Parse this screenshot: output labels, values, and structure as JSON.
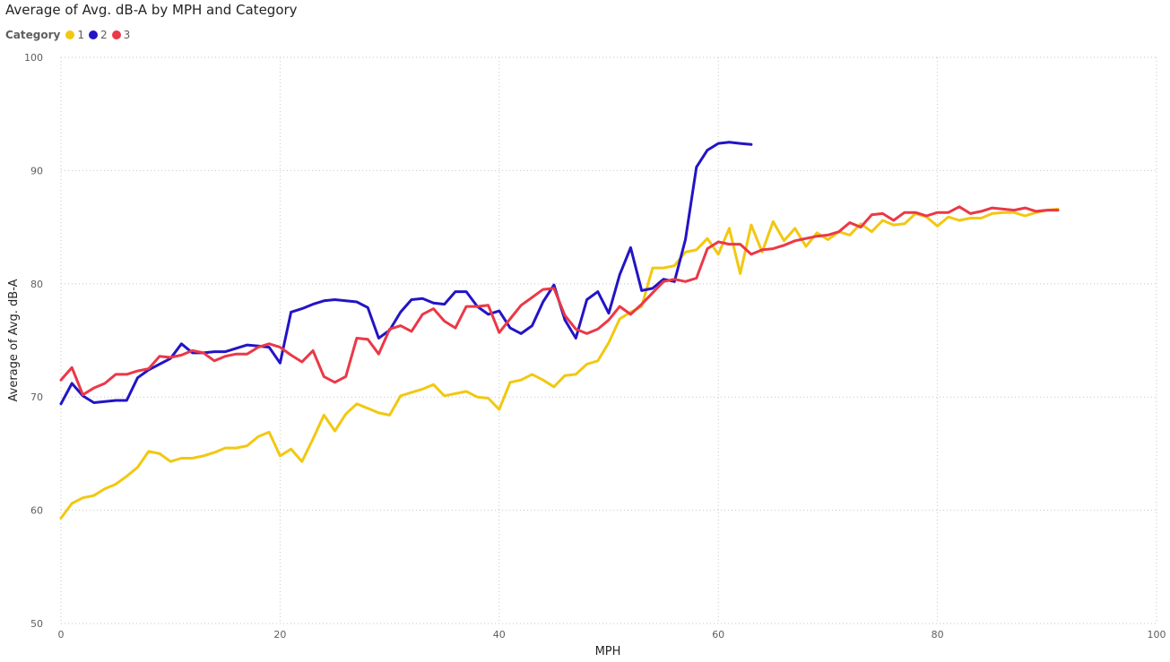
{
  "chart_data": {
    "type": "line",
    "title": "Average of Avg. dB-A by MPH and Category",
    "xlabel": "MPH",
    "ylabel": "Average of Avg. dB-A",
    "xlim": [
      0,
      100
    ],
    "ylim": [
      50,
      100
    ],
    "xticks": [
      "0",
      "20",
      "40",
      "60",
      "80",
      "100"
    ],
    "yticks": [
      "50",
      "60",
      "70",
      "80",
      "90",
      "100"
    ],
    "grid": true,
    "legend": {
      "title": "Category",
      "placement": "top-left"
    },
    "series": [
      {
        "name": "1",
        "color": "#F2C811",
        "x": [
          0,
          1,
          2,
          3,
          4,
          5,
          6,
          7,
          8,
          9,
          10,
          11,
          12,
          13,
          14,
          15,
          16,
          17,
          18,
          19,
          20,
          21,
          22,
          23,
          24,
          25,
          26,
          27,
          28,
          29,
          30,
          31,
          32,
          33,
          34,
          35,
          36,
          37,
          38,
          39,
          40,
          41,
          42,
          43,
          44,
          45,
          46,
          47,
          48,
          49,
          50,
          51,
          52,
          53,
          54,
          55,
          56,
          57,
          58,
          59,
          60,
          61,
          62,
          63,
          64,
          65,
          66,
          67,
          68,
          69,
          70,
          71,
          72,
          73,
          74,
          75,
          76,
          77,
          78,
          79,
          80,
          81,
          82,
          83,
          84,
          85,
          86,
          87,
          88,
          89,
          90,
          91
        ],
        "y": [
          59.3,
          60.6,
          61.1,
          61.3,
          61.9,
          62.3,
          63.0,
          63.8,
          65.2,
          65.0,
          64.3,
          64.6,
          64.6,
          64.8,
          65.1,
          65.5,
          65.5,
          65.7,
          66.5,
          66.9,
          64.8,
          65.4,
          64.3,
          66.3,
          68.4,
          67.0,
          68.5,
          69.4,
          69.0,
          68.6,
          68.4,
          70.1,
          70.4,
          70.7,
          71.1,
          70.1,
          70.3,
          70.5,
          70.0,
          69.9,
          68.9,
          71.3,
          71.5,
          72.0,
          71.5,
          70.9,
          71.9,
          72.0,
          72.9,
          73.2,
          74.8,
          76.9,
          77.5,
          78.0,
          81.4,
          81.4,
          81.6,
          82.8,
          83.0,
          84.0,
          82.6,
          84.9,
          80.9,
          85.2,
          82.8,
          85.5,
          83.8,
          84.9,
          83.3,
          84.5,
          83.9,
          84.6,
          84.3,
          85.3,
          84.6,
          85.6,
          85.2,
          85.3,
          86.2,
          85.9,
          85.1,
          85.9,
          85.6,
          85.8,
          85.8,
          86.2,
          86.3,
          86.3,
          86.0,
          86.3,
          86.5,
          86.6
        ]
      },
      {
        "name": "2",
        "color": "#2314C5",
        "x": [
          0,
          1,
          2,
          3,
          4,
          5,
          6,
          7,
          8,
          9,
          10,
          11,
          12,
          13,
          14,
          15,
          16,
          17,
          18,
          19,
          20,
          21,
          22,
          23,
          24,
          25,
          26,
          27,
          28,
          29,
          30,
          31,
          32,
          33,
          34,
          35,
          36,
          37,
          38,
          39,
          40,
          41,
          42,
          43,
          44,
          45,
          46,
          47,
          48,
          49,
          50,
          51,
          52,
          53,
          54,
          55,
          56,
          57,
          58,
          59,
          60,
          61,
          62,
          63
        ],
        "y": [
          69.4,
          71.2,
          70.1,
          69.5,
          69.6,
          69.7,
          69.7,
          71.7,
          72.4,
          72.9,
          73.4,
          74.7,
          73.9,
          73.9,
          74.0,
          74.0,
          74.3,
          74.6,
          74.5,
          74.4,
          73.0,
          77.5,
          77.8,
          78.2,
          78.5,
          78.6,
          78.5,
          78.4,
          77.9,
          75.2,
          75.9,
          77.5,
          78.6,
          78.7,
          78.3,
          78.2,
          79.3,
          79.3,
          78.0,
          77.3,
          77.6,
          76.1,
          75.6,
          76.3,
          78.4,
          79.9,
          76.8,
          75.2,
          78.6,
          79.3,
          77.4,
          80.8,
          83.2,
          79.4,
          79.6,
          80.4,
          80.2,
          83.9,
          90.3,
          91.8,
          92.4,
          92.5,
          92.4,
          92.3
        ]
      },
      {
        "name": "3",
        "color": "#EB3847",
        "x": [
          0,
          1,
          2,
          3,
          4,
          5,
          6,
          7,
          8,
          9,
          10,
          11,
          12,
          13,
          14,
          15,
          16,
          17,
          18,
          19,
          20,
          21,
          22,
          23,
          24,
          25,
          26,
          27,
          28,
          29,
          30,
          31,
          32,
          33,
          34,
          35,
          36,
          37,
          38,
          39,
          40,
          41,
          42,
          43,
          44,
          45,
          46,
          47,
          48,
          49,
          50,
          51,
          52,
          53,
          54,
          55,
          56,
          57,
          58,
          59,
          60,
          61,
          62,
          63,
          64,
          65,
          66,
          67,
          68,
          69,
          70,
          71,
          72,
          73,
          74,
          75,
          76,
          77,
          78,
          79,
          80,
          81,
          82,
          83,
          84,
          85,
          86,
          87,
          88,
          89,
          90,
          91
        ],
        "y": [
          71.5,
          72.6,
          70.2,
          70.8,
          71.2,
          72.0,
          72.0,
          72.3,
          72.5,
          73.6,
          73.5,
          73.7,
          74.1,
          73.9,
          73.2,
          73.6,
          73.8,
          73.8,
          74.4,
          74.7,
          74.4,
          73.7,
          73.1,
          74.1,
          71.8,
          71.3,
          71.8,
          75.2,
          75.1,
          73.8,
          76.0,
          76.3,
          75.8,
          77.3,
          77.8,
          76.7,
          76.1,
          78.0,
          78.0,
          78.1,
          75.7,
          76.9,
          78.1,
          78.8,
          79.5,
          79.6,
          77.2,
          76.0,
          75.6,
          76.0,
          76.8,
          78.0,
          77.3,
          78.2,
          79.2,
          80.2,
          80.4,
          80.2,
          80.5,
          83.1,
          83.7,
          83.5,
          83.5,
          82.6,
          83.0,
          83.1,
          83.4,
          83.8,
          84.0,
          84.2,
          84.3,
          84.6,
          85.4,
          85.0,
          86.1,
          86.2,
          85.6,
          86.3,
          86.3,
          86.0,
          86.3,
          86.3,
          86.8,
          86.2,
          86.4,
          86.7,
          86.6,
          86.5,
          86.7,
          86.4,
          86.5,
          86.5
        ]
      }
    ]
  }
}
